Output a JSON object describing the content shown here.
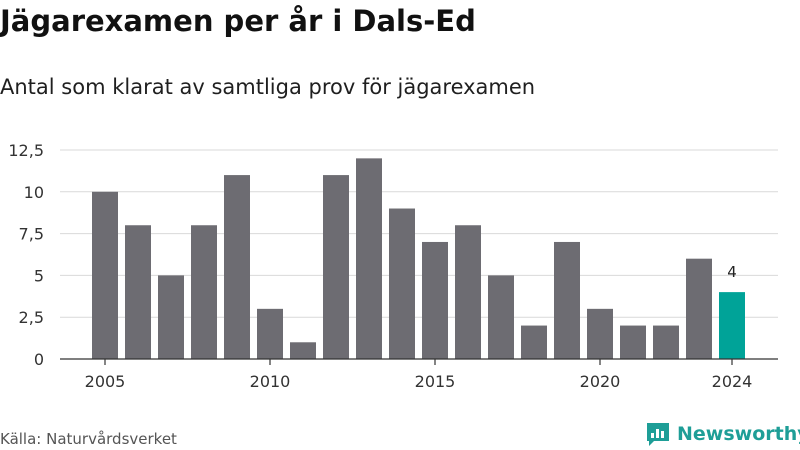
{
  "header": {
    "title": "Jägarexamen per år i Dals-Ed",
    "subtitle": "Antal som klarat av samtliga prov för jägarexamen"
  },
  "footer": {
    "source": "Källa: Naturvårdsverket",
    "brand": "Newsworthy",
    "brand_icon": "newsworthy-logo-icon",
    "brand_color": "#1e9e97"
  },
  "chart_data": {
    "type": "bar",
    "categories": [
      "2005",
      "2006",
      "2007",
      "2008",
      "2009",
      "2010",
      "2011",
      "2012",
      "2013",
      "2014",
      "2015",
      "2016",
      "2017",
      "2018",
      "2019",
      "2020",
      "2021",
      "2022",
      "2023",
      "2024"
    ],
    "values": [
      10,
      8,
      5,
      8,
      11,
      3,
      1,
      11,
      12,
      9,
      7,
      8,
      5,
      2,
      7,
      3,
      2,
      2,
      6,
      4
    ],
    "highlight_index": 19,
    "data_labels": [
      {
        "index": 19,
        "text": "4"
      }
    ],
    "ylim": [
      0,
      12.5
    ],
    "yticks": [
      0,
      2.5,
      5,
      7.5,
      10,
      12.5
    ],
    "ytick_labels": [
      "0",
      "2,5",
      "5",
      "7,5",
      "10",
      "12,5"
    ],
    "xtick_labels": [
      "2005",
      "2010",
      "2015",
      "2020",
      "2024"
    ],
    "xlabel": "",
    "ylabel": "",
    "grid": true,
    "colors": {
      "bar": "#6d6c72",
      "highlight": "#00a398",
      "grid": "#d9d9d9",
      "axis": "#333333"
    }
  }
}
